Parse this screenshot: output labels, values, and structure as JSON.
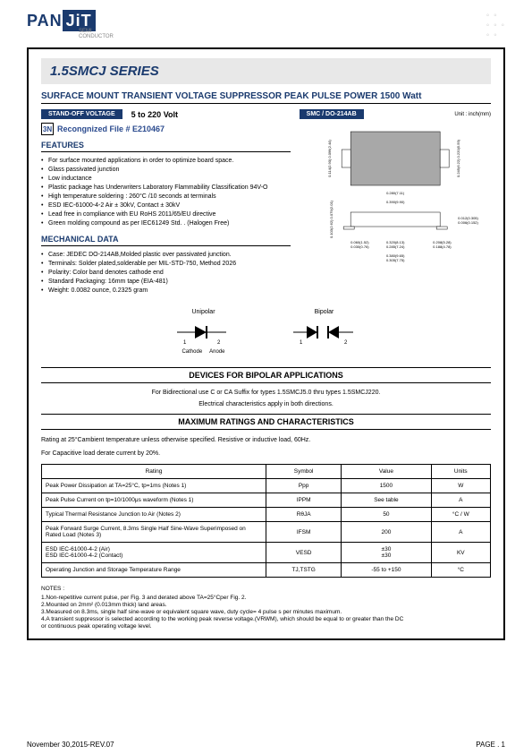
{
  "logo": {
    "pan": "PAN",
    "jit": "JiT",
    "sub": "SEMI\nCONDUCTOR"
  },
  "series_title": "1.5SMCJ SERIES",
  "subtitle": "SURFACE MOUNT TRANSIENT VOLTAGE SUPPRESSOR PEAK PULSE POWER 1500 Watt",
  "standoff_label": "STAND-OFF VOLTAGE",
  "standoff_value": "5  to  220 Volt",
  "package_label": "SMC / DO-214AB",
  "unit_label": "Unit : inch(mm)",
  "recognized": "Recongnized File # E210467",
  "features_head": "FEATURES",
  "features": [
    "For surface mounted applications in order to optimize board space.",
    "Glass passivated junction",
    "Low inductance",
    "Plastic package has Underwriters Laboratory Flammability Classification 94V-O",
    "High temperature soldering : 260°C /10 seconds at terminals",
    "ESD IEC-61000-4-2 Air ± 30kV, Contact ± 30kV",
    "Lead free in compliance with EU RoHS 2011/65/EU directive",
    "Green molding compound as per IEC61249 Std. . (Halogen Free)"
  ],
  "mech_head": "MECHANICAL DATA",
  "mech": [
    "Case: JEDEC DO-214AB,Molded plastic over passivated junction.",
    "Terminals: Solder plated,solderable per MIL-STD-750, Method 2026",
    "Polarity: Color band denotes cathode end",
    "Standard Packaging: 16mm tape (EIA-481)",
    "Weight: 0.0082 ounce, 0.2325 gram"
  ],
  "unipolar": "Unipolar",
  "bipolar": "Bipolar",
  "cathode": "Cathode",
  "anode": "Anode",
  "bipolar_apps_head": "DEVICES FOR BIPOLAR APPLICATIONS",
  "bipolar_line1": "For Bidirectional use C or CA Suffix for types 1.5SMCJ5.0 thru types 1.5SMCJ220.",
  "bipolar_line2": "Electrical characteristics apply in both directions.",
  "max_ratings_head": "MAXIMUM RATINGS AND CHARACTERISTICS",
  "rating_note1": "Rating at 25°Cambient temperature unless otherwise specified. Resistive or inductive load, 60Hz.",
  "rating_note2": "For Capacitive load derate current by 20%.",
  "table": {
    "headers": [
      "Rating",
      "Symbol",
      "Value",
      "Units"
    ],
    "rows": [
      [
        "Peak Power Dissipation at TA=25°C, tp=1ms (Notes 1)",
        "Ppp",
        "1500",
        "W"
      ],
      [
        "Peak Pulse Current on tp=10/1000μs waveform (Notes 1)",
        "IPPM",
        "See table",
        "A"
      ],
      [
        "Typical Thermal Resistance Junction to Air (Notes 2)",
        "RθJA",
        "50",
        "°C / W"
      ],
      [
        "Peak Forward Surge Current, 8.3ms Single Half Sine-Wave Superimposed on Rated Load (Notes 3)",
        "IFSM",
        "200",
        "A"
      ],
      [
        "ESD IEC-61000-4-2 (Air)\nESD IEC-61000-4-2 (Contact)",
        "VESD",
        "±30\n±30",
        "KV"
      ],
      [
        "Operating Junction and Storage Temperature Range",
        "TJ,TSTG",
        "-55 to +150",
        "°C"
      ]
    ]
  },
  "notes_head": "NOTES :",
  "notes": [
    "1.Non-repetitive current pulse, per Fig. 3 and derated above TA=25°Cper Fig. 2.",
    "2.Mounted on 2mm² (0.013mm thick) land areas.",
    "3.Measured on 8.3ms, single half sine-wave or equivalent square wave, duty cycle= 4 pulse s per minutes maximum.",
    "4.A transient suppressor is selected according to the working peak reverse voltage.(VRWM), which should be equal to or greater than the DC",
    "   or continuous peak operating voltage level."
  ],
  "footer_left": "November 30,2015-REV.07",
  "footer_right": "PAGE  .  1",
  "pkg_dims": {
    "top_h": "0.114(2.90)\n0.096(2.44)",
    "top_w": "0.280(7.11)",
    "right_h": "0.245(6.22)\n0.220(5.59)",
    "side_h": "0.103(2.62)\n0.079(2.01)",
    "lead": "0.012(0.305)\n0.006(0.152)",
    "tab": "0.060(1.52)\n0.030(0.76)",
    "body_w": "0.320(8.13)\n0.285(7.24)",
    "overall_w": "0.380(9.65)\n0.305(7.75)",
    "pitch": "0.208(5.28)\n0.188(4.78)"
  },
  "colors": {
    "brand_blue": "#1a3a6e",
    "title_bg": "#e8e8e8",
    "pkg_fill": "#a8a8a8"
  }
}
